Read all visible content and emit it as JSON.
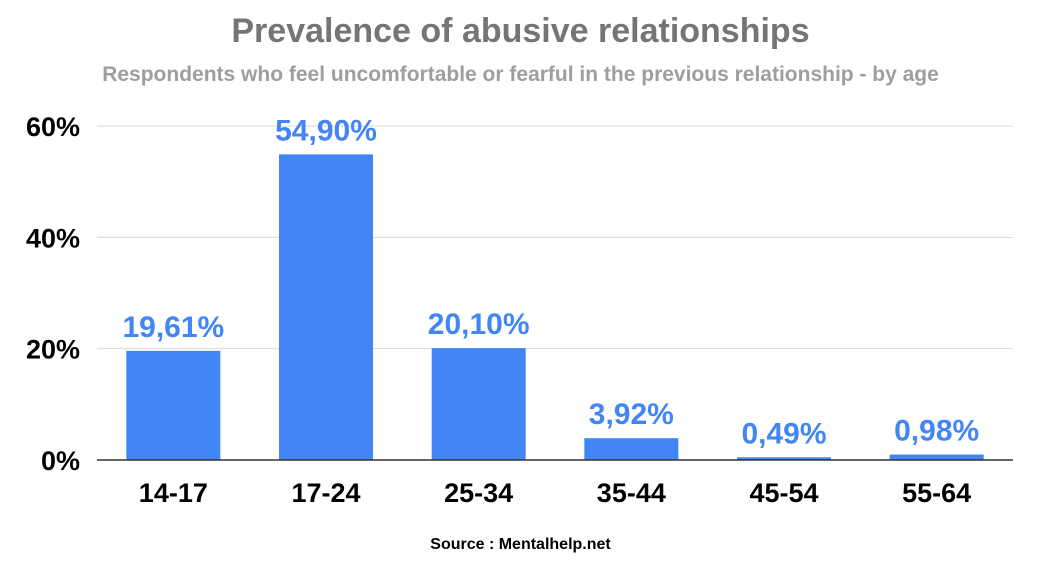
{
  "chart_data": {
    "type": "bar",
    "title": "Prevalence of abusive relationships",
    "subtitle": "Respondents who feel uncomfortable or fearful in the previous relationship - by age",
    "categories": [
      "14-17",
      "17-24",
      "25-34",
      "35-44",
      "45-54",
      "55-64"
    ],
    "values": [
      19.61,
      54.9,
      20.1,
      3.92,
      0.49,
      0.98
    ],
    "data_labels": [
      "19,61%",
      "54,90%",
      "20,10%",
      "3,92%",
      "0,49%",
      "0,98%"
    ],
    "ylim": [
      0,
      60
    ],
    "yticks": [
      0,
      20,
      40,
      60
    ],
    "ytick_labels": [
      "0%",
      "20%",
      "40%",
      "60%"
    ],
    "xlabel": "",
    "ylabel": "",
    "grid": true,
    "legend": "none",
    "colors": {
      "bar": "#4285f4",
      "data_label": "#4285f4",
      "gridline": "#d9d9d9",
      "axis": "#333333"
    }
  },
  "source_text": "Source : Mentalhelp.net"
}
